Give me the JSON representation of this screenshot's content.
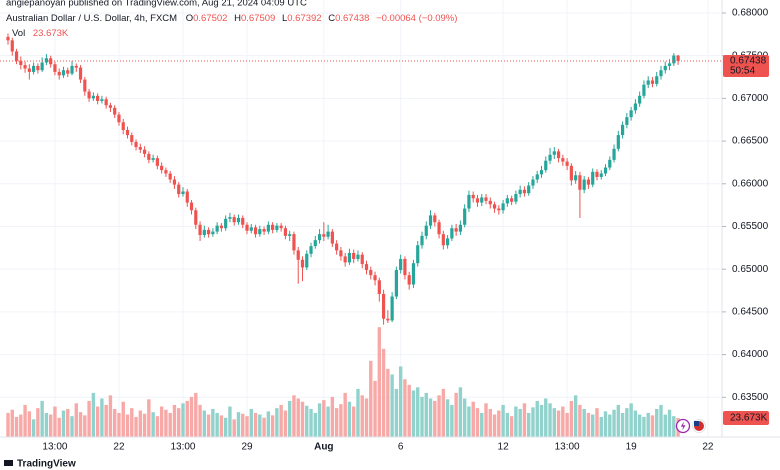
{
  "header": {
    "published": "angiepanoyan published on TradingView.com, Aug 21, 2024 04:09 UTC",
    "symbol": "Australian Dollar / U.S. Dollar, 4h, FXCM",
    "ohlc": [
      {
        "label": "O",
        "value": "0.67502"
      },
      {
        "label": "H",
        "value": "0.67509"
      },
      {
        "label": "L",
        "value": "0.67392"
      },
      {
        "label": "C",
        "value": "0.67438"
      }
    ],
    "change": "−0.00064 (−0.09%)",
    "volume_name": "Vol",
    "volume_value": "23.673K"
  },
  "logo": "TradingView",
  "chart_data": {
    "type": "candlestick",
    "title": "Australian Dollar / U.S. Dollar, 4h, FXCM",
    "up_color": "#26a69a",
    "down_color": "#ef5350",
    "up_volume_color": "#92d2cc",
    "down_volume_color": "#f7a9a7",
    "grid": true,
    "ylim": [
      0.63035,
      0.68152
    ],
    "yticks": [
      {
        "value": 0.635,
        "label": "0.63500"
      },
      {
        "value": 0.64,
        "label": "0.64000"
      },
      {
        "value": 0.645,
        "label": "0.64500"
      },
      {
        "value": 0.65,
        "label": "0.65000"
      },
      {
        "value": 0.655,
        "label": "0.65500"
      },
      {
        "value": 0.66,
        "label": "0.66000"
      },
      {
        "value": 0.665,
        "label": "0.66500"
      },
      {
        "value": 0.67,
        "label": "0.67000"
      },
      {
        "value": 0.675,
        "label": "0.67500"
      },
      {
        "value": 0.68,
        "label": "0.68000"
      }
    ],
    "volume_ylim": [
      0,
      545
    ],
    "last_price_label": "0.67438",
    "countdown": "50:54",
    "volume_label": "23.673K",
    "categories": [
      null,
      null,
      null,
      null,
      null,
      null,
      null,
      null,
      null,
      null,
      null,
      "13:00",
      null,
      null,
      null,
      null,
      null,
      null,
      null,
      null,
      null,
      null,
      null,
      null,
      null,
      null,
      "22",
      null,
      null,
      null,
      null,
      null,
      null,
      null,
      null,
      null,
      null,
      null,
      null,
      null,
      null,
      "13:00",
      null,
      null,
      null,
      null,
      null,
      null,
      null,
      null,
      null,
      null,
      null,
      null,
      null,
      null,
      "29",
      null,
      null,
      null,
      null,
      null,
      null,
      null,
      null,
      null,
      null,
      null,
      null,
      null,
      null,
      null,
      null,
      null,
      "Aug",
      null,
      null,
      null,
      null,
      null,
      null,
      null,
      null,
      null,
      null,
      null,
      null,
      null,
      null,
      null,
      null,
      null,
      "6",
      null,
      null,
      null,
      null,
      null,
      null,
      null,
      null,
      null,
      null,
      null,
      null,
      null,
      null,
      null,
      null,
      null,
      null,
      null,
      null,
      null,
      null,
      null,
      "12",
      null,
      null,
      null,
      null,
      null,
      null,
      null,
      null,
      null,
      null,
      null,
      null,
      null,
      null,
      "13:00",
      null,
      null,
      null,
      null,
      null,
      null,
      null,
      null,
      null,
      null,
      null,
      null,
      null,
      null,
      "19",
      null,
      null,
      null,
      null,
      null,
      null,
      null,
      null,
      null,
      null,
      null,
      null,
      null,
      null,
      null,
      null,
      null,
      "22"
    ],
    "open": [
      0.6772,
      0.6768,
      0.6755,
      0.6744,
      0.6739,
      0.6735,
      0.6731,
      0.6738,
      0.6733,
      0.6742,
      0.6747,
      0.674,
      0.6731,
      0.6727,
      0.6733,
      0.6729,
      0.6738,
      0.6736,
      0.6722,
      0.6708,
      0.67,
      0.6703,
      0.6697,
      0.6699,
      0.6692,
      0.6689,
      0.6681,
      0.6672,
      0.6663,
      0.6657,
      0.6649,
      0.6643,
      0.664,
      0.6635,
      0.6628,
      0.663,
      0.6621,
      0.6616,
      0.6612,
      0.6605,
      0.6599,
      0.6588,
      0.6591,
      0.6578,
      0.6569,
      0.6552,
      0.654,
      0.6546,
      0.6541,
      0.6544,
      0.6551,
      0.6548,
      0.6559,
      0.6561,
      0.6555,
      0.656,
      0.6552,
      0.6545,
      0.6549,
      0.6541,
      0.6547,
      0.6544,
      0.6552,
      0.6546,
      0.6551,
      0.6548,
      0.6539,
      0.6541,
      0.6522,
      0.6511,
      0.6502,
      0.6518,
      0.6527,
      0.6534,
      0.6541,
      0.6538,
      0.6544,
      0.653,
      0.6522,
      0.6515,
      0.6508,
      0.6519,
      0.6512,
      0.6517,
      0.6506,
      0.6499,
      0.6493,
      0.6487,
      0.6471,
      0.6442,
      0.644,
      0.6468,
      0.6499,
      0.6512,
      0.6493,
      0.6482,
      0.6507,
      0.6528,
      0.6539,
      0.6551,
      0.6563,
      0.6555,
      0.6541,
      0.6528,
      0.6536,
      0.6548,
      0.6544,
      0.6552,
      0.6571,
      0.6587,
      0.6583,
      0.6578,
      0.6584,
      0.658,
      0.6576,
      0.6571,
      0.6569,
      0.6577,
      0.6583,
      0.6579,
      0.6588,
      0.6593,
      0.6589,
      0.6598,
      0.6605,
      0.6611,
      0.6616,
      0.6627,
      0.6634,
      0.6638,
      0.663,
      0.6626,
      0.6621,
      0.6604,
      0.661,
      0.6593,
      0.6605,
      0.6599,
      0.6614,
      0.6608,
      0.6612,
      0.6619,
      0.6628,
      0.6641,
      0.6657,
      0.6669,
      0.6678,
      0.6686,
      0.6694,
      0.6703,
      0.6716,
      0.6721,
      0.6717,
      0.6726,
      0.6733,
      0.6738,
      0.6741,
      0.67502,
      null,
      null,
      null,
      null,
      null,
      null,
      null
    ],
    "high": [
      0.6776,
      0.6771,
      0.6758,
      0.6749,
      0.6743,
      0.674,
      0.6742,
      0.6741,
      0.6748,
      0.6752,
      0.675,
      0.6743,
      0.6735,
      0.6737,
      0.6736,
      0.6744,
      0.6741,
      0.6739,
      0.6725,
      0.6711,
      0.6707,
      0.6706,
      0.6703,
      0.6702,
      0.6695,
      0.6692,
      0.6684,
      0.6676,
      0.6667,
      0.666,
      0.6652,
      0.6647,
      0.6644,
      0.6638,
      0.6634,
      0.6633,
      0.6625,
      0.6619,
      0.6615,
      0.6609,
      0.6602,
      0.6596,
      0.6594,
      0.6581,
      0.6572,
      0.6556,
      0.6551,
      0.6549,
      0.6548,
      0.6555,
      0.6554,
      0.6563,
      0.6566,
      0.6564,
      0.6564,
      0.6563,
      0.6555,
      0.6553,
      0.6552,
      0.6551,
      0.655,
      0.6556,
      0.6555,
      0.6554,
      0.6554,
      0.6551,
      0.6545,
      0.6544,
      0.6526,
      0.6515,
      0.6522,
      0.6531,
      0.6539,
      0.6547,
      0.6555,
      0.6552,
      0.6547,
      0.6534,
      0.6526,
      0.6519,
      0.6524,
      0.6523,
      0.6522,
      0.652,
      0.651,
      0.6503,
      0.6497,
      0.649,
      0.6476,
      0.6452,
      0.6473,
      0.6503,
      0.6517,
      0.6515,
      0.6497,
      0.6511,
      0.6533,
      0.6544,
      0.6556,
      0.6569,
      0.6566,
      0.6558,
      0.6545,
      0.654,
      0.6552,
      0.6553,
      0.6557,
      0.6576,
      0.6592,
      0.6591,
      0.6587,
      0.6588,
      0.6588,
      0.6584,
      0.6579,
      0.6575,
      0.6581,
      0.6587,
      0.6586,
      0.6592,
      0.6598,
      0.6597,
      0.6602,
      0.6609,
      0.6615,
      0.6621,
      0.6632,
      0.6642,
      0.6643,
      0.6641,
      0.6634,
      0.663,
      0.6624,
      0.6615,
      0.6614,
      0.6609,
      0.6608,
      0.6618,
      0.6617,
      0.6616,
      0.6623,
      0.6632,
      0.6646,
      0.6662,
      0.6673,
      0.6683,
      0.669,
      0.6699,
      0.6708,
      0.6721,
      0.6726,
      0.6725,
      0.6731,
      0.6738,
      0.6743,
      0.6746,
      0.6753,
      0.67509,
      null,
      null,
      null,
      null,
      null,
      null,
      null
    ],
    "low": [
      0.6763,
      0.675,
      0.674,
      0.6734,
      0.673,
      0.6722,
      0.6728,
      0.6729,
      0.6731,
      0.6739,
      0.6736,
      0.6727,
      0.6722,
      0.6724,
      0.6725,
      0.6727,
      0.6731,
      0.6718,
      0.6703,
      0.6696,
      0.6697,
      0.6693,
      0.6694,
      0.6688,
      0.6684,
      0.6677,
      0.6668,
      0.6658,
      0.6653,
      0.6645,
      0.6639,
      0.6636,
      0.6631,
      0.6624,
      0.6625,
      0.6617,
      0.6612,
      0.6608,
      0.6601,
      0.6594,
      0.6584,
      0.6585,
      0.6573,
      0.6564,
      0.6547,
      0.6533,
      0.6537,
      0.6537,
      0.6538,
      0.6541,
      0.6544,
      0.6545,
      0.6555,
      0.6551,
      0.6552,
      0.6548,
      0.6541,
      0.6542,
      0.6537,
      0.6538,
      0.654,
      0.6541,
      0.6542,
      0.6543,
      0.6544,
      0.6535,
      0.6533,
      0.6517,
      0.6483,
      0.6486,
      0.6499,
      0.6514,
      0.6524,
      0.653,
      0.6533,
      0.6535,
      0.6526,
      0.6517,
      0.651,
      0.6503,
      0.6505,
      0.6507,
      0.6509,
      0.6501,
      0.6494,
      0.6488,
      0.6481,
      0.6462,
      0.6435,
      0.6437,
      0.6438,
      0.6465,
      0.6495,
      0.6488,
      0.6476,
      0.6478,
      0.6503,
      0.6524,
      0.6535,
      0.6547,
      0.655,
      0.6536,
      0.6523,
      0.6524,
      0.6533,
      0.6539,
      0.654,
      0.6549,
      0.6567,
      0.6578,
      0.6573,
      0.6574,
      0.6576,
      0.6571,
      0.6566,
      0.6564,
      0.6565,
      0.6573,
      0.6575,
      0.6576,
      0.6584,
      0.6585,
      0.6586,
      0.6594,
      0.6601,
      0.6607,
      0.6613,
      0.6623,
      0.6629,
      0.6625,
      0.6621,
      0.6616,
      0.6598,
      0.66,
      0.656,
      0.6589,
      0.6594,
      0.6596,
      0.6604,
      0.6605,
      0.6609,
      0.6616,
      0.6625,
      0.6638,
      0.6653,
      0.6665,
      0.6674,
      0.6682,
      0.669,
      0.67,
      0.6712,
      0.6713,
      0.6714,
      0.6722,
      0.6729,
      0.6733,
      0.6738,
      0.67392,
      null,
      null,
      null,
      null,
      null,
      null,
      null
    ],
    "close": [
      0.6768,
      0.6755,
      0.6744,
      0.6739,
      0.6735,
      0.6731,
      0.6738,
      0.6733,
      0.6742,
      0.6747,
      0.674,
      0.6731,
      0.6727,
      0.6733,
      0.6729,
      0.6738,
      0.6736,
      0.6722,
      0.6708,
      0.67,
      0.6703,
      0.6697,
      0.6699,
      0.6692,
      0.6689,
      0.6681,
      0.6672,
      0.6663,
      0.6657,
      0.6649,
      0.6643,
      0.664,
      0.6635,
      0.6628,
      0.663,
      0.6621,
      0.6616,
      0.6612,
      0.6605,
      0.6599,
      0.6588,
      0.6591,
      0.6578,
      0.6569,
      0.6552,
      0.654,
      0.6546,
      0.6541,
      0.6544,
      0.6551,
      0.6548,
      0.6559,
      0.6561,
      0.6555,
      0.656,
      0.6552,
      0.6545,
      0.6549,
      0.6541,
      0.6547,
      0.6544,
      0.6552,
      0.6546,
      0.6551,
      0.6548,
      0.6539,
      0.6541,
      0.6522,
      0.6511,
      0.6502,
      0.6518,
      0.6527,
      0.6534,
      0.6541,
      0.6538,
      0.6544,
      0.653,
      0.6522,
      0.6515,
      0.6508,
      0.6519,
      0.6512,
      0.6517,
      0.6506,
      0.6499,
      0.6493,
      0.6487,
      0.6471,
      0.6442,
      0.644,
      0.6468,
      0.6499,
      0.6512,
      0.6493,
      0.6482,
      0.6507,
      0.6528,
      0.6539,
      0.6551,
      0.6563,
      0.6555,
      0.6541,
      0.6528,
      0.6536,
      0.6548,
      0.6544,
      0.6552,
      0.6571,
      0.6587,
      0.6583,
      0.6578,
      0.6584,
      0.658,
      0.6576,
      0.6571,
      0.6569,
      0.6577,
      0.6583,
      0.6579,
      0.6588,
      0.6593,
      0.6589,
      0.6598,
      0.6605,
      0.6611,
      0.6616,
      0.6627,
      0.6634,
      0.6638,
      0.663,
      0.6626,
      0.6621,
      0.6604,
      0.661,
      0.6593,
      0.6605,
      0.6599,
      0.6614,
      0.6608,
      0.6612,
      0.6619,
      0.6628,
      0.6641,
      0.6657,
      0.6669,
      0.6678,
      0.6686,
      0.6694,
      0.6703,
      0.6716,
      0.6721,
      0.6717,
      0.6726,
      0.6733,
      0.6738,
      0.6741,
      0.67502,
      0.67438,
      null,
      null,
      null,
      null,
      null,
      null,
      null
    ],
    "volume": [
      30,
      34,
      25,
      28,
      40,
      32,
      22,
      36,
      45,
      30,
      28,
      38,
      24,
      33,
      35,
      26,
      42,
      31,
      27,
      45,
      55,
      38,
      48,
      40,
      52,
      35,
      30,
      44,
      28,
      36,
      25,
      33,
      29,
      47,
      31,
      26,
      38,
      34,
      30,
      40,
      36,
      42,
      45,
      50,
      55,
      40,
      33,
      28,
      35,
      30,
      27,
      24,
      38,
      22,
      31,
      29,
      26,
      35,
      30,
      28,
      24,
      32,
      27,
      36,
      40,
      33,
      45,
      52,
      48,
      44,
      39,
      35,
      30,
      42,
      46,
      38,
      50,
      36,
      41,
      55,
      44,
      38,
      60,
      52,
      48,
      95,
      70,
      137,
      110,
      85,
      78,
      60,
      88,
      72,
      65,
      58,
      62,
      50,
      55,
      48,
      45,
      52,
      60,
      47,
      40,
      55,
      62,
      48,
      38,
      44,
      36,
      30,
      42,
      35,
      28,
      33,
      40,
      30,
      26,
      38,
      35,
      42,
      30,
      37,
      45,
      40,
      48,
      42,
      36,
      33,
      38,
      30,
      45,
      52,
      40,
      35,
      30,
      28,
      36,
      25,
      32,
      28,
      34,
      40,
      30,
      36,
      42,
      33,
      28,
      25,
      30,
      27,
      35,
      40,
      28,
      34,
      26,
      23.673,
      null,
      null,
      null,
      null,
      null,
      null,
      null
    ]
  }
}
